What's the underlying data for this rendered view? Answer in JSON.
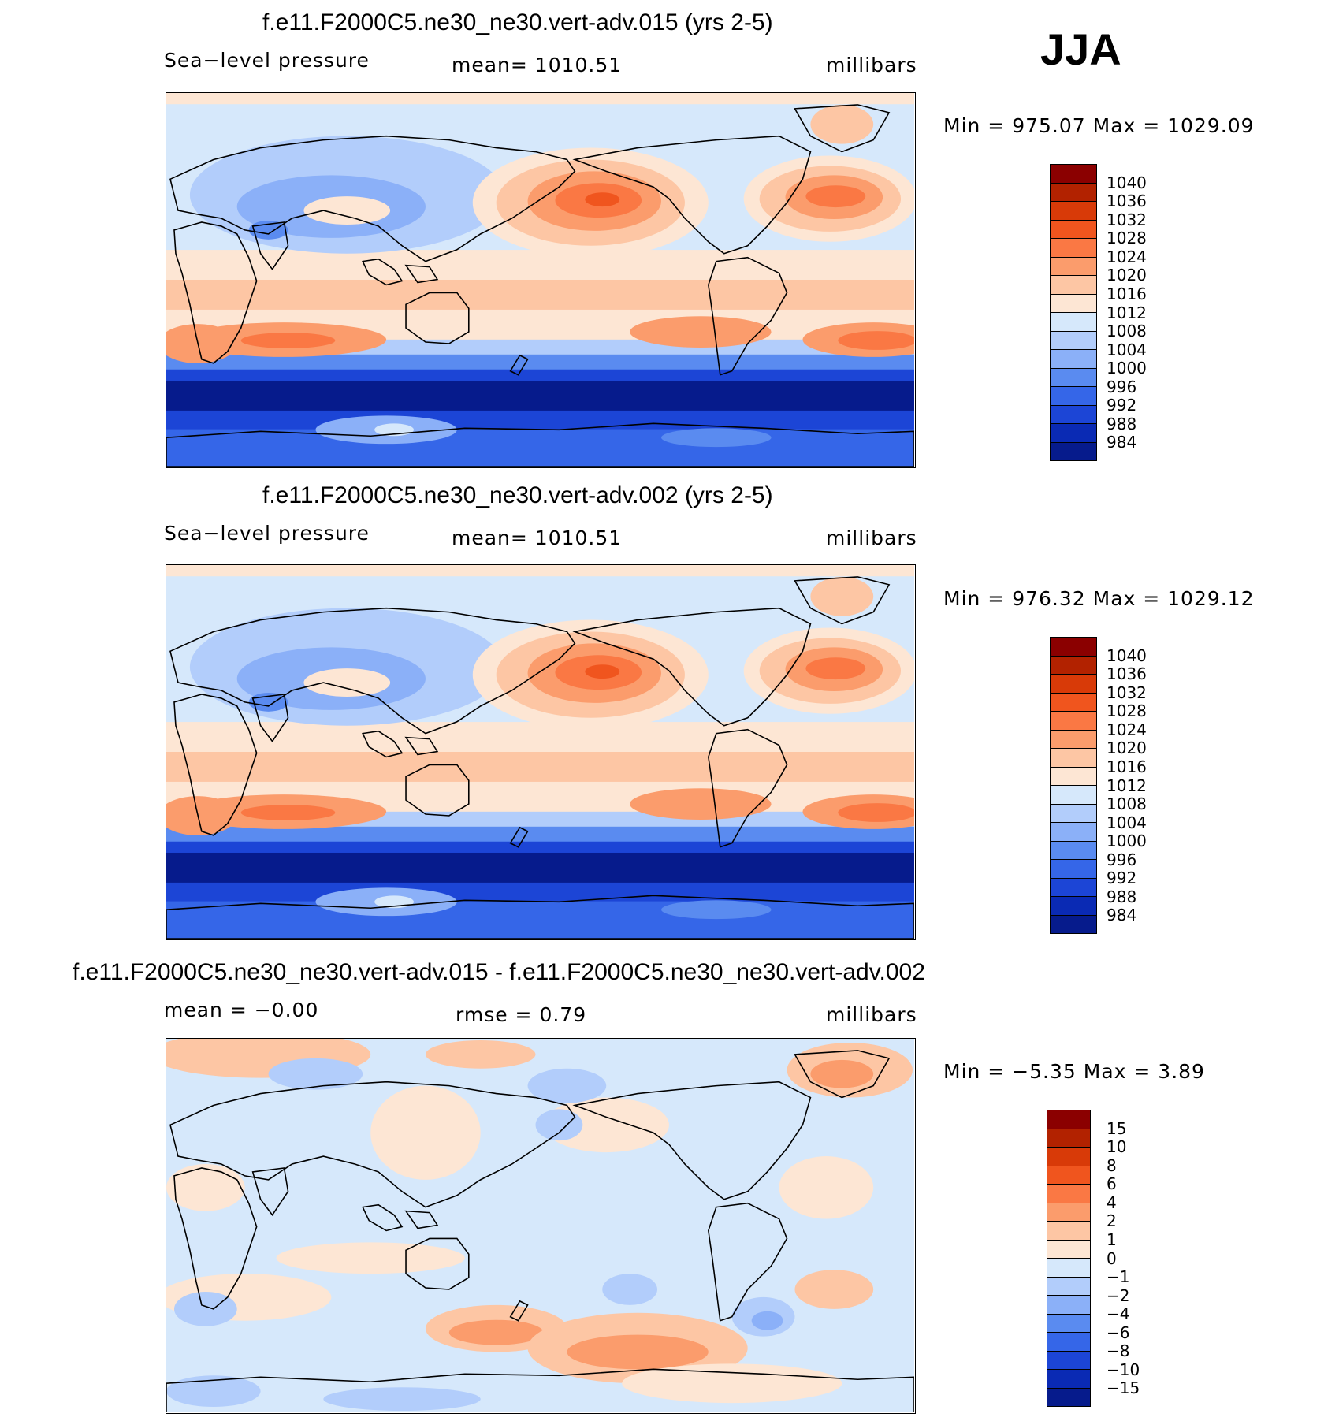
{
  "season": "JJA",
  "panels": [
    {
      "title": "f.e11.F2000C5.ne30_ne30.vert-adv.015 (yrs 2-5)",
      "left_label": "Sea−level  pressure",
      "center_label": "mean=  1010.51",
      "right_label": "millibars",
      "minmax": "Min  =  975.07  Max  =  1029.09",
      "levels": [
        "1040",
        "1036",
        "1032",
        "1028",
        "1024",
        "1020",
        "1016",
        "1012",
        "1008",
        "1004",
        "1000",
        "996",
        "992",
        "988",
        "984"
      ],
      "variant": "abs"
    },
    {
      "title": "f.e11.F2000C5.ne30_ne30.vert-adv.002 (yrs 2-5)",
      "left_label": "Sea−level  pressure",
      "center_label": "mean=  1010.51",
      "right_label": "millibars",
      "minmax": "Min  =  976.32  Max  =  1029.12",
      "levels": [
        "1040",
        "1036",
        "1032",
        "1028",
        "1024",
        "1020",
        "1016",
        "1012",
        "1008",
        "1004",
        "1000",
        "996",
        "992",
        "988",
        "984"
      ],
      "variant": "abs"
    },
    {
      "title": "f.e11.F2000C5.ne30_ne30.vert-adv.015 - f.e11.F2000C5.ne30_ne30.vert-adv.002",
      "left_label": "mean  =    −0.00",
      "center_label": "rmse  =     0.79",
      "right_label": "millibars",
      "minmax": "Min  =    −5.35  Max  =      3.89",
      "levels": [
        "15",
        "10",
        "8",
        "6",
        "4",
        "2",
        "1",
        "0",
        "−1",
        "−2",
        "−4",
        "−6",
        "−8",
        "−10",
        "−15"
      ],
      "variant": "diff"
    }
  ],
  "colors": {
    "palette": [
      "#8b0000",
      "#b22200",
      "#d83a08",
      "#f0551e",
      "#fa7844",
      "#fb9c6c",
      "#fdc6a4",
      "#fde6d4",
      "#d6e8fb",
      "#b2cdfb",
      "#8bb0f8",
      "#5a8bf0",
      "#3566e8",
      "#1c45d6",
      "#0a2ab4",
      "#061b8c"
    ],
    "land_outline": "#000000"
  }
}
